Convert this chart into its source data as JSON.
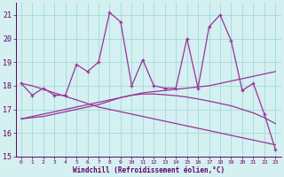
{
  "xlabel": "Windchill (Refroidissement éolien,°C)",
  "x": [
    0,
    1,
    2,
    3,
    4,
    5,
    6,
    7,
    8,
    9,
    10,
    11,
    12,
    13,
    14,
    15,
    16,
    17,
    18,
    19,
    20,
    21,
    22,
    23
  ],
  "y_main": [
    18.1,
    17.6,
    17.9,
    17.6,
    17.6,
    18.9,
    18.6,
    19.0,
    21.1,
    20.7,
    18.0,
    19.1,
    18.0,
    17.9,
    17.9,
    20.0,
    17.9,
    20.5,
    21.0,
    19.9,
    17.8,
    18.1,
    16.8,
    15.3
  ],
  "y_lin1": [
    16.6,
    16.7,
    16.8,
    16.9,
    17.0,
    17.1,
    17.2,
    17.3,
    17.4,
    17.5,
    17.6,
    17.7,
    17.75,
    17.8,
    17.85,
    17.9,
    17.95,
    18.0,
    18.1,
    18.2,
    18.3,
    18.4,
    18.5,
    18.6
  ],
  "y_lin2": [
    18.1,
    18.0,
    17.85,
    17.7,
    17.55,
    17.4,
    17.25,
    17.1,
    17.0,
    16.9,
    16.8,
    16.7,
    16.6,
    16.5,
    16.4,
    16.3,
    16.2,
    16.1,
    16.0,
    15.9,
    15.8,
    15.7,
    15.6,
    15.5
  ],
  "y_curve": [
    16.6,
    16.65,
    16.7,
    16.8,
    16.9,
    17.0,
    17.1,
    17.2,
    17.35,
    17.5,
    17.6,
    17.65,
    17.65,
    17.62,
    17.58,
    17.52,
    17.44,
    17.35,
    17.25,
    17.15,
    17.0,
    16.85,
    16.65,
    16.4
  ],
  "line_color": "#993399",
  "bg_color": "#d4f0f0",
  "grid_color": "#aadddd",
  "text_color": "#660066",
  "xlim": [
    -0.5,
    23.5
  ],
  "ylim": [
    15.0,
    21.5
  ],
  "yticks": [
    15,
    16,
    17,
    18,
    19,
    20,
    21
  ],
  "marker": "+"
}
